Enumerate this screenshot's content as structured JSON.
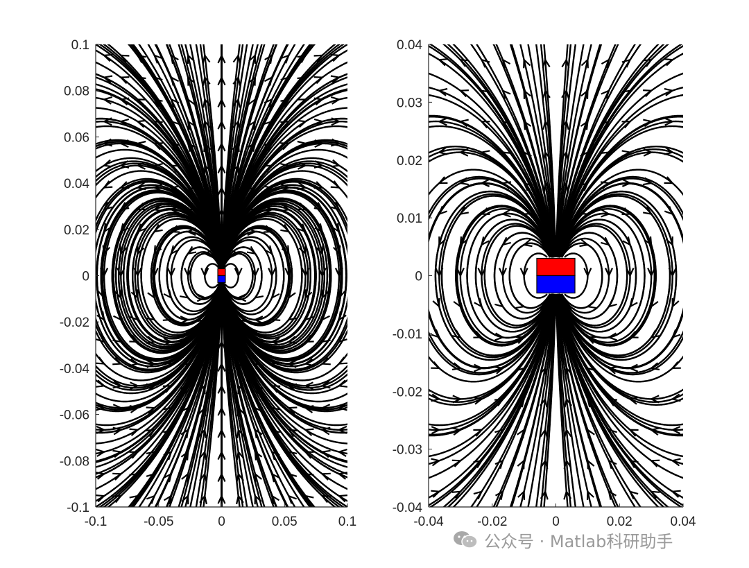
{
  "figure": {
    "watermark_text": "公众号 · Matlab科研助手",
    "colors": {
      "north_pole": "#ff0000",
      "south_pole": "#0000ff",
      "field_lines": "#000000",
      "axes": "#262626",
      "watermark": "#9a9a9a"
    }
  },
  "chart_data": [
    {
      "type": "streamline",
      "title": "",
      "xlabel": "",
      "ylabel": "",
      "xlim": [
        -0.1,
        0.1
      ],
      "ylim": [
        -0.1,
        0.1
      ],
      "xticks": [
        -0.1,
        -0.05,
        0,
        0.05,
        0.1
      ],
      "xtick_labels": [
        "-0.1",
        "-0.05",
        "0",
        "0.05",
        "0.1"
      ],
      "yticks": [
        -0.1,
        -0.08,
        -0.06,
        -0.04,
        -0.02,
        0,
        0.02,
        0.04,
        0.06,
        0.08,
        0.1
      ],
      "ytick_labels": [
        "-0.1",
        "-0.08",
        "-0.06",
        "-0.04",
        "-0.02",
        "0",
        "0.02",
        "0.04",
        "0.06",
        "0.08",
        "0.1"
      ],
      "grid": false,
      "magnet": {
        "x_range": [
          -0.003,
          0.003
        ],
        "north_y_range": [
          0,
          0.003
        ],
        "south_y_range": [
          -0.003,
          0
        ]
      },
      "field": "magnetic dipole (pointing +y)"
    },
    {
      "type": "streamline",
      "title": "",
      "xlabel": "",
      "ylabel": "",
      "xlim": [
        -0.04,
        0.04
      ],
      "ylim": [
        -0.04,
        0.04
      ],
      "xticks": [
        -0.04,
        -0.02,
        0,
        0.02,
        0.04
      ],
      "xtick_labels": [
        "-0.04",
        "-0.02",
        "0",
        "0.02",
        "0.04"
      ],
      "yticks": [
        -0.04,
        -0.03,
        -0.02,
        -0.01,
        0,
        0.01,
        0.02,
        0.03,
        0.04
      ],
      "ytick_labels": [
        "-0.04",
        "-0.03",
        "-0.02",
        "-0.01",
        "0",
        "0.01",
        "0.02",
        "0.03",
        "0.04"
      ],
      "grid": false,
      "magnet": {
        "x_range": [
          -0.006,
          0.006
        ],
        "north_y_range": [
          0,
          0.003
        ],
        "south_y_range": [
          -0.003,
          0
        ]
      },
      "field": "magnetic dipole (pointing +y)"
    }
  ]
}
